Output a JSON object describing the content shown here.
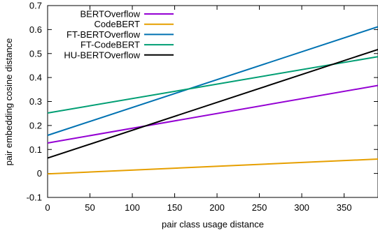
{
  "chart_data": {
    "type": "line",
    "xlabel": "pair class usage distance",
    "ylabel": "pair embedding cosine distance",
    "xlim": [
      0,
      390
    ],
    "ylim": [
      -0.1,
      0.7
    ],
    "x_ticks": [
      0,
      50,
      100,
      150,
      200,
      250,
      300,
      350
    ],
    "y_ticks": [
      -0.1,
      0,
      0.1,
      0.2,
      0.3,
      0.4,
      0.5,
      0.6,
      0.7
    ],
    "x_tick_labels": [
      "0",
      "50",
      "100",
      "150",
      "200",
      "250",
      "300",
      "350"
    ],
    "y_tick_labels": [
      "-0.1",
      "0",
      "0.1",
      "0.2",
      "0.3",
      "0.4",
      "0.5",
      "0.6",
      "0.7"
    ],
    "grid": false,
    "legend_position": "top-left",
    "series": [
      {
        "name": "BERTOverflow",
        "color": "#9400d3",
        "x": [
          0,
          390
        ],
        "y": [
          0.127,
          0.367
        ]
      },
      {
        "name": "CodeBERT",
        "color": "#e69f00",
        "x": [
          0,
          390
        ],
        "y": [
          -0.002,
          0.06
        ]
      },
      {
        "name": "FT-BERTOverflow",
        "color": "#0072b2",
        "x": [
          0,
          390
        ],
        "y": [
          0.159,
          0.612
        ]
      },
      {
        "name": "FT-CodeBERT",
        "color": "#009e73",
        "x": [
          0,
          390
        ],
        "y": [
          0.252,
          0.487
        ]
      },
      {
        "name": "HU-BERTOverflow",
        "color": "#000000",
        "x": [
          0,
          390
        ],
        "y": [
          0.064,
          0.517
        ]
      }
    ]
  }
}
